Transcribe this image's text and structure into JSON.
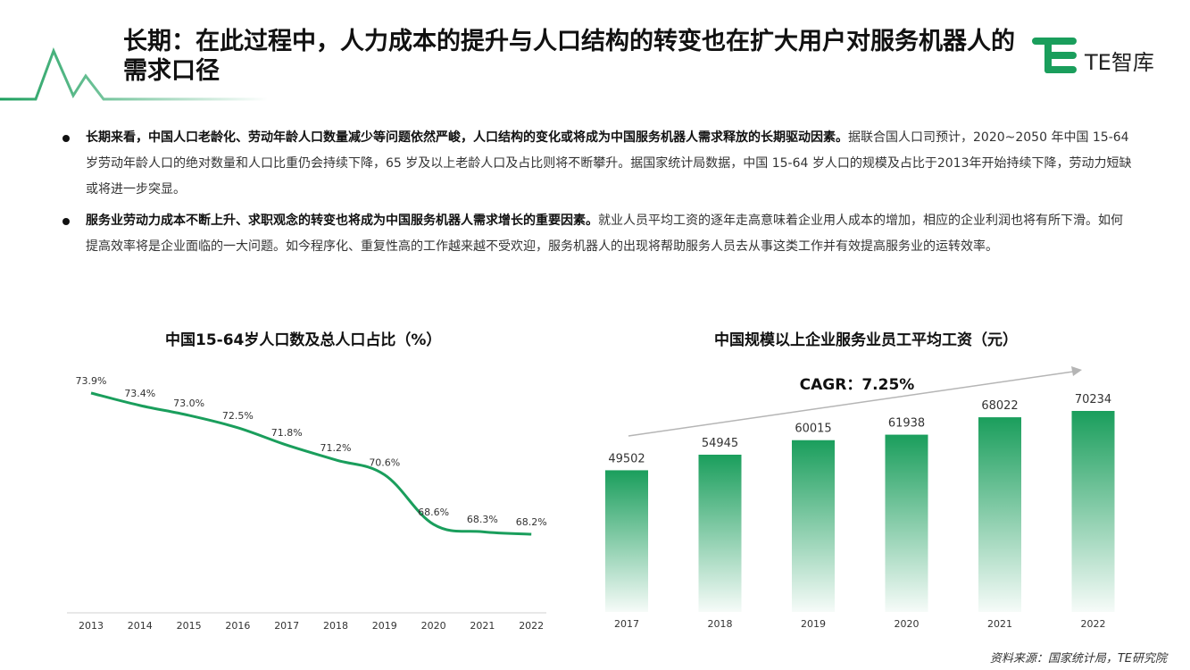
{
  "header": {
    "title": "长期：在此过程中，人力成本的提升与人口结构的转变也在扩大用户对服务机器人的需求口径",
    "logo_text": "TE智库",
    "accent_color": "#1a9e5c"
  },
  "bullets": [
    {
      "bold": "长期来看，中国人口老龄化、劳动年龄人口数量减少等问题依然严峻，人口结构的变化或将成为中国服务机器人需求释放的长期驱动因素。",
      "text": "据联合国人口司预计，2020~2050 年中国 15-64 岁劳动年龄人口的绝对数量和人口比重仍会持续下降，65 岁及以上老龄人口及占比则将不断攀升。据国家统计局数据，中国 15-64 岁人口的规模及占比于2013年开始持续下降，劳动力短缺或将进一步突显。"
    },
    {
      "bold": "服务业劳动力成本不断上升、求职观念的转变也将成为中国服务机器人需求增长的重要因素。",
      "text": "就业人员平均工资的逐年走高意味着企业用人成本的增加，相应的企业利润也将有所下滑。如何提高效率将是企业面临的一大问题。如今程序化、重复性高的工作越来越不受欢迎，服务机器人的出现将帮助服务人员去从事这类工作并有效提高服务业的运转效率。"
    }
  ],
  "chart_data": [
    {
      "type": "line",
      "title": "中国15-64岁人口数及总人口占比（%）",
      "x": [
        "2013",
        "2014",
        "2015",
        "2016",
        "2017",
        "2018",
        "2019",
        "2020",
        "2021",
        "2022"
      ],
      "values": [
        73.9,
        73.4,
        73.0,
        72.5,
        71.8,
        71.2,
        70.6,
        68.6,
        68.3,
        68.2
      ],
      "labels": [
        "73.9%",
        "73.4%",
        "73.0%",
        "72.5%",
        "71.8%",
        "71.2%",
        "70.6%",
        "68.6%",
        "68.3%",
        "68.2%"
      ],
      "color": "#1a9e5c"
    },
    {
      "type": "bar",
      "title": "中国规模以上企业服务业员工平均工资（元）",
      "categories": [
        "2017",
        "2018",
        "2019",
        "2020",
        "2021",
        "2022"
      ],
      "values": [
        49502,
        54945,
        60015,
        61938,
        68022,
        70234
      ],
      "annotation": "CAGR：7.25%",
      "color": "#1a9e5c"
    }
  ],
  "source": "资料来源：国家统计局，TE研究院"
}
